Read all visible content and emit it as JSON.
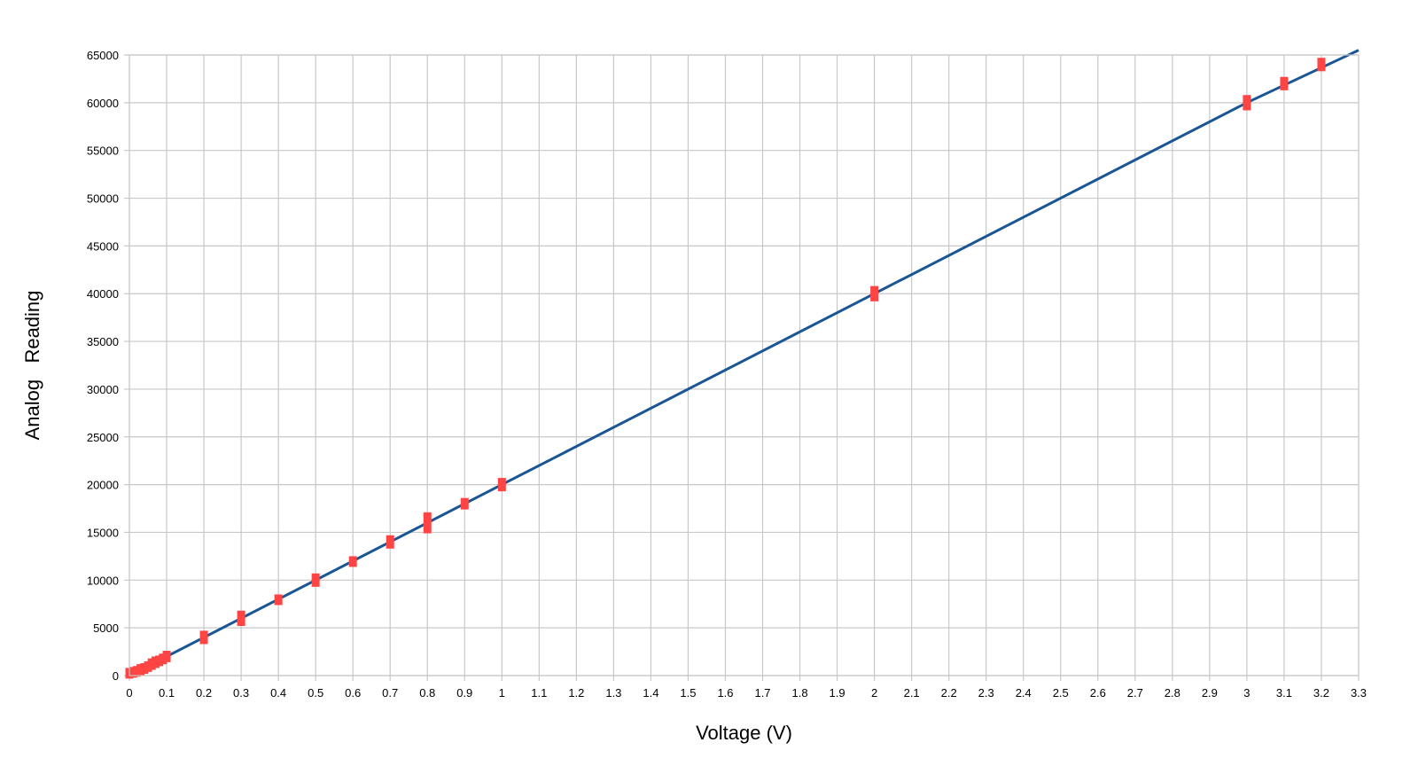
{
  "chart_data": {
    "type": "scatter",
    "title": "",
    "xlabel": "Voltage (V)",
    "ylabel": "Analog   Reading",
    "xlim": [
      0,
      3.3
    ],
    "ylim": [
      0,
      65000
    ],
    "grid": true,
    "x_ticks": [
      0,
      0.1,
      0.2,
      0.3,
      0.4,
      0.5,
      0.6,
      0.7,
      0.8,
      0.9,
      1,
      1.1,
      1.2,
      1.3,
      1.4,
      1.5,
      1.6,
      1.7,
      1.8,
      1.9,
      2,
      2.1,
      2.2,
      2.3,
      2.4,
      2.5,
      2.6,
      2.7,
      2.8,
      2.9,
      3,
      3.1,
      3.2,
      3.3
    ],
    "y_ticks": [
      0,
      5000,
      10000,
      15000,
      20000,
      25000,
      30000,
      35000,
      40000,
      45000,
      50000,
      55000,
      60000,
      65000
    ],
    "colors": {
      "line": "#1a5694",
      "points": "#ff4444",
      "grid": "#c8c8c8"
    },
    "series": [
      {
        "type": "line",
        "x": [
          0,
          1,
          2,
          3,
          3.3
        ],
        "y": [
          0,
          20000,
          40000,
          60000,
          65500
        ]
      },
      {
        "type": "scatter",
        "marker": "vertical-bar",
        "x": [
          0,
          0.01,
          0.02,
          0.03,
          0.04,
          0.05,
          0.06,
          0.07,
          0.08,
          0.09,
          0.1,
          0.2,
          0.3,
          0.4,
          0.5,
          0.6,
          0.7,
          0.8,
          0.9,
          1,
          2,
          3,
          3.1,
          3.2
        ],
        "y": [
          300,
          400,
          500,
          600,
          800,
          1000,
          1200,
          1400,
          1600,
          1800,
          2000,
          4000,
          6000,
          8000,
          10000,
          12000,
          14000,
          16000,
          18000,
          20000,
          40000,
          60000,
          62000,
          64000
        ],
        "spread": [
          500,
          500,
          500,
          600,
          500,
          500,
          600,
          600,
          500,
          500,
          600,
          700,
          800,
          500,
          700,
          500,
          700,
          1100,
          600,
          700,
          800,
          800,
          700,
          700
        ]
      }
    ]
  }
}
